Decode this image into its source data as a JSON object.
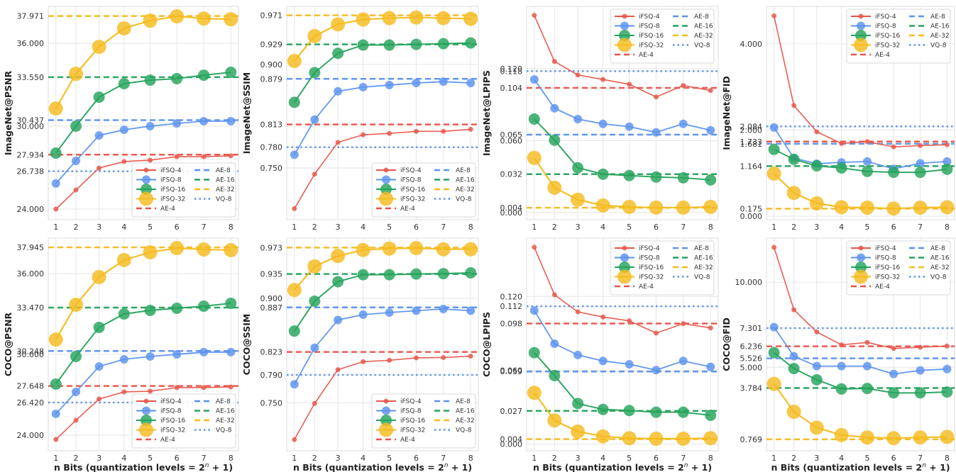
{
  "figure": {
    "xlabel_prefix": "n Bits (quantization levels = 2",
    "xlabel_sup": "n",
    "xlabel_suffix": " + 1)"
  },
  "colors": {
    "iFSQ-4": "#e8554a",
    "iFSQ-8": "#5b93ef",
    "iFSQ-16": "#24a35c",
    "iFSQ-32": "#f5bb1e",
    "AE-4": "#e8554a",
    "AE-8": "#5b93ef",
    "AE-16": "#24a35c",
    "AE-32": "#f5bb1e",
    "VQ-8": "#5b93ef",
    "grid": "#e6e6e6",
    "frame": "#dcdcdc"
  },
  "chart_data": [
    {
      "type": "line",
      "title": "",
      "ylabel": "ImageNet@PSNR",
      "xlabel": "",
      "x": [
        1,
        2,
        3,
        4,
        5,
        6,
        7,
        8
      ],
      "xscale": "log(2^n+1)",
      "ylim": [
        23.23,
        38.67
      ],
      "yticks": [
        "24.000",
        "26.738",
        "27.934",
        "30.000",
        "30.437",
        "33.550",
        "36.000",
        "37.971"
      ],
      "grid": true,
      "legend_position": "lower-right",
      "series": [
        {
          "name": "iFSQ-4",
          "values": [
            24.0,
            25.38,
            26.97,
            27.44,
            27.54,
            27.79,
            27.79,
            27.85
          ]
        },
        {
          "name": "iFSQ-8",
          "values": [
            25.85,
            27.49,
            29.33,
            29.74,
            30.0,
            30.2,
            30.36,
            30.36
          ]
        },
        {
          "name": "iFSQ-16",
          "values": [
            28.05,
            30.0,
            32.1,
            33.08,
            33.33,
            33.44,
            33.69,
            33.9
          ]
        },
        {
          "name": "iFSQ-32",
          "values": [
            31.28,
            33.79,
            35.74,
            37.08,
            37.64,
            37.95,
            37.79,
            37.74
          ]
        }
      ],
      "reference_lines": [
        {
          "name": "AE-4",
          "value": 27.934,
          "style": "dashed"
        },
        {
          "name": "AE-8",
          "value": 30.437,
          "style": "dashed"
        },
        {
          "name": "AE-16",
          "value": 33.55,
          "style": "dashed"
        },
        {
          "name": "AE-32",
          "value": 37.971,
          "style": "dashed"
        },
        {
          "name": "VQ-8",
          "value": 26.738,
          "style": "dotted"
        }
      ]
    },
    {
      "type": "line",
      "title": "",
      "ylabel": "ImageNet@SSIM",
      "xlabel": "",
      "x": [
        1,
        2,
        3,
        4,
        5,
        6,
        7,
        8
      ],
      "xscale": "log(2^n+1)",
      "ylim": [
        0.675,
        0.984
      ],
      "yticks": [
        "0.750",
        "0.780",
        "0.813",
        "0.879",
        "0.900",
        "0.929",
        "0.971"
      ],
      "grid": true,
      "legend_position": "lower-right",
      "series": [
        {
          "name": "iFSQ-4",
          "values": [
            0.691,
            0.741,
            0.787,
            0.798,
            0.8,
            0.803,
            0.803,
            0.806
          ]
        },
        {
          "name": "iFSQ-8",
          "values": [
            0.769,
            0.82,
            0.861,
            0.867,
            0.87,
            0.873,
            0.875,
            0.873
          ]
        },
        {
          "name": "iFSQ-16",
          "values": [
            0.845,
            0.888,
            0.916,
            0.928,
            0.928,
            0.929,
            0.93,
            0.931
          ]
        },
        {
          "name": "iFSQ-32",
          "values": [
            0.905,
            0.941,
            0.958,
            0.965,
            0.967,
            0.968,
            0.967,
            0.966
          ]
        }
      ],
      "reference_lines": [
        {
          "name": "AE-4",
          "value": 0.813,
          "style": "dashed"
        },
        {
          "name": "AE-8",
          "value": 0.879,
          "style": "dashed"
        },
        {
          "name": "AE-16",
          "value": 0.929,
          "style": "dashed"
        },
        {
          "name": "AE-32",
          "value": 0.971,
          "style": "dashed"
        },
        {
          "name": "VQ-8",
          "value": 0.78,
          "style": "dotted"
        }
      ]
    },
    {
      "type": "line",
      "title": "",
      "ylabel": "ImageNet@LPIPS",
      "xlabel": "",
      "x": [
        1,
        2,
        3,
        4,
        5,
        6,
        7,
        8
      ],
      "xscale": "log(2^n+1)",
      "ylim": [
        -0.006,
        0.172
      ],
      "yticks": [
        "0.000",
        "0.004",
        "0.032",
        "0.060",
        "0.065",
        "0.104",
        "0.118",
        "0.120"
      ],
      "grid": true,
      "legend_position": "upper-right",
      "series": [
        {
          "name": "iFSQ-4",
          "values": [
            0.1645,
            0.126,
            0.1148,
            0.111,
            0.107,
            0.0964,
            0.106,
            0.1018
          ]
        },
        {
          "name": "iFSQ-8",
          "values": [
            0.111,
            0.087,
            0.078,
            0.074,
            0.0716,
            0.0669,
            0.074,
            0.0686
          ]
        },
        {
          "name": "iFSQ-16",
          "values": [
            0.078,
            0.0604,
            0.0373,
            0.032,
            0.0308,
            0.0296,
            0.029,
            0.0272
          ]
        },
        {
          "name": "iFSQ-32",
          "values": [
            0.0456,
            0.0207,
            0.0107,
            0.0059,
            0.0047,
            0.0041,
            0.0041,
            0.0047
          ]
        }
      ],
      "reference_lines": [
        {
          "name": "AE-4",
          "value": 0.104,
          "style": "dashed"
        },
        {
          "name": "AE-8",
          "value": 0.065,
          "style": "dashed"
        },
        {
          "name": "AE-16",
          "value": 0.032,
          "style": "dashed"
        },
        {
          "name": "AE-32",
          "value": 0.004,
          "style": "dashed"
        },
        {
          "name": "VQ-8",
          "value": 0.118,
          "style": "dotted"
        }
      ]
    },
    {
      "type": "line",
      "title": "",
      "ylabel": "ImageNet@FID",
      "xlabel": "",
      "x": [
        1,
        2,
        3,
        4,
        5,
        6,
        7,
        8
      ],
      "xscale": "log(2^n+1)",
      "ylim": [
        -0.08,
        4.87
      ],
      "yticks": [
        "0.000",
        "0.175",
        "1.164",
        "1.681",
        "1.733",
        "2.000",
        "2.084",
        "4.000"
      ],
      "grid": true,
      "legend_position": "upper-right",
      "series": [
        {
          "name": "iFSQ-4",
          "values": [
            4.65,
            2.57,
            1.96,
            1.69,
            1.73,
            1.61,
            1.64,
            1.66
          ]
        },
        {
          "name": "iFSQ-8",
          "values": [
            2.06,
            1.35,
            1.22,
            1.25,
            1.27,
            1.1,
            1.23,
            1.27
          ]
        },
        {
          "name": "iFSQ-16",
          "values": [
            1.55,
            1.32,
            1.17,
            1.12,
            1.04,
            1.02,
            1.02,
            1.09
          ]
        },
        {
          "name": "iFSQ-32",
          "values": [
            0.99,
            0.54,
            0.3,
            0.21,
            0.2,
            0.18,
            0.2,
            0.21
          ]
        }
      ],
      "reference_lines": [
        {
          "name": "AE-4",
          "value": 1.733,
          "style": "dashed"
        },
        {
          "name": "AE-8",
          "value": 1.681,
          "style": "dashed"
        },
        {
          "name": "AE-16",
          "value": 1.164,
          "style": "dashed"
        },
        {
          "name": "AE-32",
          "value": 0.175,
          "style": "dashed"
        },
        {
          "name": "VQ-8",
          "value": 2.084,
          "style": "dotted"
        }
      ]
    },
    {
      "type": "line",
      "title": "",
      "ylabel": "COCO@PSNR",
      "xlabel": "n Bits (quantization levels = 2^n + 1)",
      "x": [
        1,
        2,
        3,
        4,
        5,
        6,
        7,
        8
      ],
      "xscale": "log(2^n+1)",
      "ylim": [
        22.84,
        38.63
      ],
      "yticks": [
        "24.000",
        "26.420",
        "27.648",
        "30.000",
        "30.248",
        "33.470",
        "36.000",
        "37.945"
      ],
      "grid": true,
      "legend_position": "lower-right",
      "series": [
        {
          "name": "iFSQ-4",
          "values": [
            23.68,
            25.1,
            26.68,
            27.21,
            27.26,
            27.53,
            27.53,
            27.58
          ]
        },
        {
          "name": "iFSQ-8",
          "values": [
            25.58,
            27.21,
            29.1,
            29.63,
            29.84,
            30.0,
            30.16,
            30.16
          ]
        },
        {
          "name": "iFSQ-16",
          "values": [
            27.79,
            29.84,
            32.0,
            33.0,
            33.26,
            33.42,
            33.58,
            33.79
          ]
        },
        {
          "name": "iFSQ-32",
          "values": [
            31.1,
            33.68,
            35.74,
            37.0,
            37.58,
            37.89,
            37.79,
            37.74
          ]
        }
      ],
      "reference_lines": [
        {
          "name": "AE-4",
          "value": 27.648,
          "style": "dashed"
        },
        {
          "name": "AE-8",
          "value": 30.248,
          "style": "dashed"
        },
        {
          "name": "AE-16",
          "value": 33.47,
          "style": "dashed"
        },
        {
          "name": "AE-32",
          "value": 37.945,
          "style": "dashed"
        },
        {
          "name": "VQ-8",
          "value": 26.42,
          "style": "dotted"
        }
      ]
    },
    {
      "type": "line",
      "title": "",
      "ylabel": "COCO@SSIM",
      "xlabel": "n Bits (quantization levels = 2^n + 1)",
      "x": [
        1,
        2,
        3,
        4,
        5,
        6,
        7,
        8
      ],
      "xscale": "log(2^n+1)",
      "ylim": [
        0.681,
        0.9866
      ],
      "yticks": [
        "0.750",
        "0.790",
        "0.823",
        "0.887",
        "0.900",
        "0.935",
        "0.973"
      ],
      "grid": true,
      "legend_position": "lower-right",
      "series": [
        {
          "name": "iFSQ-4",
          "values": [
            0.697,
            0.749,
            0.7975,
            0.809,
            0.811,
            0.8145,
            0.815,
            0.817
          ]
        },
        {
          "name": "iFSQ-8",
          "values": [
            0.7765,
            0.829,
            0.869,
            0.8766,
            0.8796,
            0.8823,
            0.8847,
            0.8823
          ]
        },
        {
          "name": "iFSQ-16",
          "values": [
            0.853,
            0.896,
            0.924,
            0.934,
            0.934,
            0.935,
            0.9356,
            0.9367
          ]
        },
        {
          "name": "iFSQ-32",
          "values": [
            0.912,
            0.946,
            0.961,
            0.9695,
            0.9716,
            0.9723,
            0.9706,
            0.9706
          ]
        }
      ],
      "reference_lines": [
        {
          "name": "AE-4",
          "value": 0.823,
          "style": "dashed"
        },
        {
          "name": "AE-8",
          "value": 0.887,
          "style": "dashed"
        },
        {
          "name": "AE-16",
          "value": 0.935,
          "style": "dashed"
        },
        {
          "name": "AE-32",
          "value": 0.973,
          "style": "dashed"
        },
        {
          "name": "VQ-8",
          "value": 0.79,
          "style": "dotted"
        }
      ]
    },
    {
      "type": "line",
      "title": "",
      "ylabel": "COCO@LPIPS",
      "xlabel": "n Bits (quantization levels = 2^n + 1)",
      "x": [
        1,
        2,
        3,
        4,
        5,
        6,
        7,
        8
      ],
      "xscale": "log(2^n+1)",
      "ylim": [
        -0.0054,
        0.1674
      ],
      "yticks": [
        "0.000",
        "0.004",
        "0.027",
        "0.059",
        "0.060",
        "0.098",
        "0.112",
        "0.120"
      ],
      "grid": true,
      "legend_position": "upper-right",
      "series": [
        {
          "name": "iFSQ-4",
          "values": [
            0.16,
            0.1213,
            0.1075,
            0.1033,
            0.1002,
            0.0902,
            0.0979,
            0.0944
          ]
        },
        {
          "name": "iFSQ-8",
          "values": [
            0.1085,
            0.0816,
            0.0724,
            0.0676,
            0.0649,
            0.0601,
            0.0676,
            0.0628
          ]
        },
        {
          "name": "iFSQ-16",
          "values": [
            0.0743,
            0.0557,
            0.033,
            0.0282,
            0.0273,
            0.0259,
            0.0259,
            0.0234
          ]
        },
        {
          "name": "iFSQ-32",
          "values": [
            0.0417,
            0.0192,
            0.0102,
            0.0063,
            0.0048,
            0.0044,
            0.0044,
            0.0048
          ]
        }
      ],
      "reference_lines": [
        {
          "name": "AE-4",
          "value": 0.098,
          "style": "dashed"
        },
        {
          "name": "AE-8",
          "value": 0.059,
          "style": "dashed"
        },
        {
          "name": "AE-16",
          "value": 0.027,
          "style": "dashed"
        },
        {
          "name": "AE-32",
          "value": 0.004,
          "style": "dashed"
        },
        {
          "name": "VQ-8",
          "value": 0.112,
          "style": "dotted"
        }
      ]
    },
    {
      "type": "line",
      "title": "",
      "ylabel": "COCO@FID",
      "xlabel": "n Bits (quantization levels = 2^n + 1)",
      "x": [
        1,
        2,
        3,
        4,
        5,
        6,
        7,
        8
      ],
      "xscale": "log(2^n+1)",
      "ylim": [
        0.1,
        12.59
      ],
      "yticks": [
        "0.769",
        "3.784",
        "5.000",
        "5.526",
        "6.236",
        "7.301",
        "10.000"
      ],
      "grid": true,
      "legend_position": "upper-right",
      "series": [
        {
          "name": "iFSQ-4",
          "values": [
            12.05,
            8.38,
            7.08,
            6.32,
            6.46,
            6.11,
            6.18,
            6.25
          ]
        },
        {
          "name": "iFSQ-8",
          "values": [
            7.36,
            5.65,
            5.07,
            5.07,
            5.07,
            4.61,
            4.82,
            4.9
          ]
        },
        {
          "name": "iFSQ-16",
          "values": [
            5.86,
            4.93,
            4.27,
            3.73,
            3.76,
            3.5,
            3.5,
            3.55
          ]
        },
        {
          "name": "iFSQ-32",
          "values": [
            4.03,
            2.39,
            1.46,
            1.02,
            0.88,
            0.84,
            0.88,
            0.91
          ]
        }
      ],
      "reference_lines": [
        {
          "name": "AE-4",
          "value": 6.236,
          "style": "dashed"
        },
        {
          "name": "AE-8",
          "value": 5.526,
          "style": "dashed"
        },
        {
          "name": "AE-16",
          "value": 3.784,
          "style": "dashed"
        },
        {
          "name": "AE-32",
          "value": 0.769,
          "style": "dashed"
        },
        {
          "name": "VQ-8",
          "value": 7.301,
          "style": "dotted"
        }
      ]
    }
  ],
  "legend": {
    "col1": [
      "iFSQ-4",
      "iFSQ-8",
      "iFSQ-16",
      "iFSQ-32",
      "AE-4"
    ],
    "col2": [
      "AE-8",
      "AE-16",
      "AE-32",
      "VQ-8"
    ]
  }
}
